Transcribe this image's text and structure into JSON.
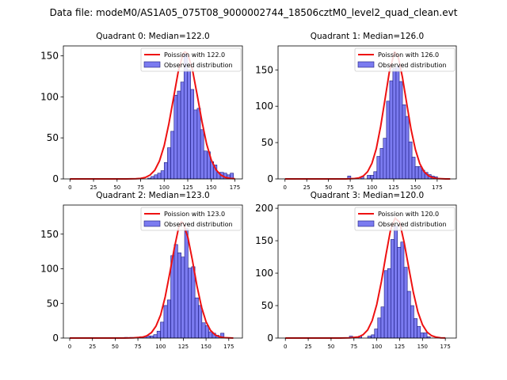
{
  "figure_title": "Data file: modeM0/AS1A05_075T08_9000002744_18506cztM0_level2_quad_clean.evt",
  "colors": {
    "bar_fill": "#7b7bf0",
    "bar_edge": "#1a1a80",
    "curve": "#ee1111"
  },
  "chart_data": [
    {
      "type": "bar",
      "title": "Quadrant 0: Median=122.0",
      "legend": [
        "Poission with 122.0",
        "Observed distribution"
      ],
      "legend_position": "top-right",
      "xlim": [
        -7,
        183
      ],
      "ylim": [
        0,
        162
      ],
      "xticks": [
        0,
        25,
        50,
        75,
        100,
        125,
        150,
        175
      ],
      "yticks": [
        0,
        50,
        100,
        150
      ],
      "bin_width": 3.5,
      "bin_starts": [
        82.5,
        86,
        89.5,
        93,
        96.5,
        100,
        103.5,
        107,
        110.5,
        114,
        117.5,
        121,
        124.5,
        128,
        131.5,
        135,
        138.5,
        142,
        145.5,
        149,
        152.5,
        156,
        159.5,
        163,
        166.5,
        170
      ],
      "counts": [
        1,
        3,
        5,
        7,
        10,
        20,
        38,
        58,
        102,
        107,
        118,
        152,
        133,
        109,
        84,
        86,
        60,
        34,
        33,
        21,
        17,
        8,
        8,
        7,
        5,
        7
      ],
      "curve": {
        "x": [
          0,
          10,
          20,
          30,
          40,
          50,
          60,
          70,
          75,
          80,
          85,
          90,
          95,
          100,
          105,
          110,
          115,
          120,
          122,
          125,
          130,
          135,
          140,
          145,
          150,
          155,
          160,
          165,
          170,
          175
        ],
        "y": [
          0,
          0,
          0,
          0,
          0,
          0,
          0,
          0.2,
          0.6,
          1.8,
          4.7,
          10.6,
          21.9,
          40.6,
          67.3,
          99.4,
          131.2,
          152.4,
          154.9,
          152.3,
          132.7,
          102.3,
          70.2,
          42.6,
          23.1,
          11.2,
          4.8,
          1.8,
          0.6,
          0.2
        ]
      }
    },
    {
      "type": "bar",
      "title": "Quadrant 1: Median=126.0",
      "legend": [
        "Poission with 126.0",
        "Observed distribution"
      ],
      "legend_position": "top-right",
      "xlim": [
        -8,
        197
      ],
      "ylim": [
        0,
        183
      ],
      "xticks": [
        0,
        25,
        50,
        75,
        100,
        125,
        150,
        175
      ],
      "yticks": [
        0,
        50,
        100,
        150
      ],
      "bin_width": 3.7,
      "bin_starts": [
        72,
        87,
        94.5,
        98.5,
        102,
        105.7,
        109.4,
        113,
        116.7,
        120.4,
        124,
        127.7,
        131.4,
        135,
        138.7,
        142.4,
        146,
        149.7,
        153.4,
        157,
        160.7,
        164.4,
        168,
        171.7
      ],
      "counts": [
        4,
        3,
        5,
        5,
        10,
        31,
        42,
        56,
        107,
        135,
        152,
        155,
        134,
        102,
        86,
        51,
        30,
        17,
        17,
        12,
        9,
        6,
        4,
        3
      ],
      "curve": {
        "x": [
          0,
          10,
          20,
          30,
          40,
          50,
          60,
          70,
          80,
          85,
          90,
          95,
          100,
          105,
          110,
          115,
          120,
          126,
          130,
          135,
          140,
          145,
          150,
          155,
          160,
          165,
          170,
          175,
          180,
          185,
          190
        ],
        "y": [
          0,
          0,
          0,
          0,
          0,
          0,
          0,
          0,
          0.5,
          1.4,
          4,
          9.9,
          21.5,
          41.5,
          72.2,
          109.5,
          147.4,
          175,
          168.7,
          140,
          103.9,
          68.1,
          40.2,
          21,
          9.9,
          4.2,
          1.6,
          0.5,
          0.2,
          0,
          0
        ]
      }
    },
    {
      "type": "bar",
      "title": "Quadrant 2: Median=123.0",
      "legend": [
        "Poission with 123.0",
        "Observed distribution"
      ],
      "legend_position": "top-right",
      "xlim": [
        -7,
        190
      ],
      "ylim": [
        0,
        192
      ],
      "xticks": [
        0,
        25,
        50,
        75,
        100,
        125,
        150,
        175
      ],
      "yticks": [
        0,
        50,
        100,
        150
      ],
      "bin_width": 3.8,
      "bin_starts": [
        60,
        66,
        72,
        77,
        81,
        84.5,
        88.5,
        92.3,
        96,
        99.8,
        103.6,
        107.4,
        111.2,
        115,
        118.8,
        122.6,
        126.4,
        130.2,
        134,
        137.8,
        141.6,
        145.4,
        149.2,
        153,
        156.8,
        160.6,
        166
      ],
      "counts": [
        1,
        1,
        1,
        2,
        2,
        3,
        3,
        5,
        10,
        23,
        47,
        55,
        119,
        135,
        123,
        117,
        158,
        101,
        103,
        58,
        47,
        22,
        18,
        9,
        7,
        4,
        7
      ],
      "curve": {
        "x": [
          0,
          10,
          20,
          30,
          40,
          50,
          60,
          70,
          80,
          85,
          90,
          95,
          100,
          105,
          110,
          115,
          120,
          123,
          125,
          130,
          135,
          140,
          145,
          150,
          155,
          160,
          165,
          170,
          175,
          180
        ],
        "y": [
          0,
          0,
          0,
          0,
          0,
          0,
          0,
          0.3,
          1.2,
          3.3,
          8,
          17.4,
          33.5,
          59.3,
          93,
          129.5,
          160.3,
          168,
          165.4,
          145.1,
          112.2,
          75.4,
          44.7,
          23.6,
          11,
          4.6,
          1.7,
          0.6,
          0.2,
          0
        ]
      }
    },
    {
      "type": "bar",
      "title": "Quadrant 3: Median=120.0",
      "legend": [
        "Poission with 120.0",
        "Observed distribution"
      ],
      "legend_position": "top-right",
      "xlim": [
        -8,
        187
      ],
      "ylim": [
        0,
        205
      ],
      "xticks": [
        0,
        25,
        50,
        75,
        100,
        125,
        150,
        175
      ],
      "yticks": [
        0,
        50,
        100,
        150,
        200
      ],
      "bin_width": 3.6,
      "bin_starts": [
        70,
        80,
        90,
        94,
        97.5,
        101,
        104.6,
        108.2,
        111.8,
        115.4,
        119,
        122.6,
        126.2,
        129.8,
        133.4,
        137,
        140.6,
        144.2,
        147.8,
        151.4,
        155
      ],
      "counts": [
        3,
        3,
        3,
        5,
        14,
        31,
        48,
        104,
        107,
        152,
        173,
        140,
        148,
        109,
        72,
        50,
        30,
        18,
        8,
        8,
        2
      ],
      "curve": {
        "x": [
          0,
          10,
          20,
          30,
          40,
          50,
          60,
          70,
          80,
          85,
          90,
          95,
          100,
          105,
          110,
          115,
          120,
          125,
          130,
          135,
          140,
          145,
          150,
          155,
          160,
          165,
          170,
          175
        ],
        "y": [
          0,
          0,
          0,
          0,
          0,
          0,
          0,
          0.3,
          1.7,
          5.1,
          12.4,
          26.9,
          51.7,
          86.8,
          128.2,
          166.1,
          185,
          178.4,
          147.3,
          108.2,
          70.2,
          40.3,
          20.5,
          9.2,
          3.7,
          1.3,
          0.4,
          0.1
        ]
      }
    }
  ]
}
